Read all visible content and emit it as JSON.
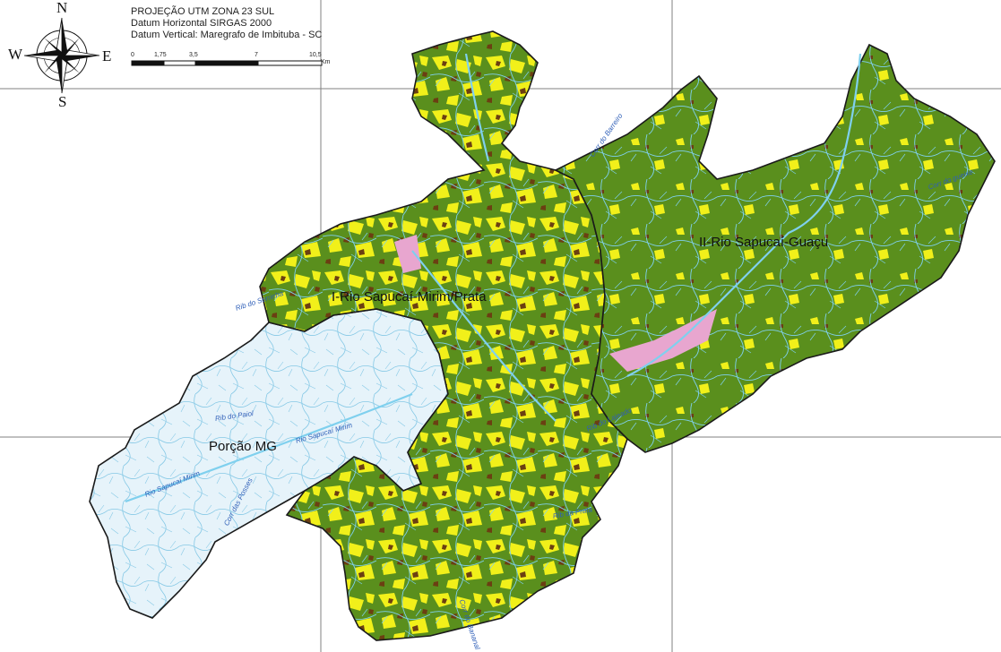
{
  "header": {
    "projection": "PROJEÇÃO UTM ZONA 23 SUL",
    "datum_horizontal": "Datum Horizontal SIRGAS 2000",
    "datum_vertical": "Datum Vertical: Maregrafo de Imbituba - SC"
  },
  "scale_bar": {
    "ticks": [
      "0",
      "1,75",
      "3,5",
      "7",
      "10,5"
    ],
    "unit": "Km"
  },
  "compass": {
    "n": "N",
    "s": "S",
    "e": "E",
    "w": "W"
  },
  "regions": {
    "region_1": "I-Rio Sapucaí-Mirim/Prata",
    "region_2": "II-Rio Sapucaí-Guaçu",
    "region_mg": "Porção MG"
  },
  "rivers": {
    "rib_paiol": "Rib do Paiol",
    "rio_sapucai_mirim_center": "Rio Sapucaí Mirim",
    "rio_sapucai_mirim_left": "Rio Sapucaí Mirim",
    "corr_posses": "Corr das Posses",
    "rib_serrinha": "Rib do Serrinha",
    "corr_barreiro": "Corr do Barreiro",
    "corr_gueixe": "Corr do gueixe",
    "rib_lajeado": "Rib do Lajeado",
    "rib_prata": "Rib da Prata",
    "corr_bananal": "Corr do Bananal"
  },
  "colors": {
    "forest": "#5a8f1d",
    "agriculture": "#f1f01a",
    "bare_soil": "#6b3f12",
    "urban": "#e8a6cf",
    "mg_area": "#e6f3fa",
    "rivers": "#7fd0ee",
    "grid": "#808080",
    "boundary": "#1a1a1a"
  }
}
